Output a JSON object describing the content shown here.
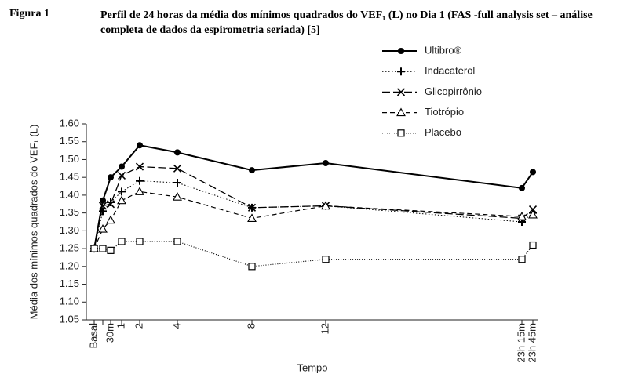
{
  "figure_label": "Figura 1",
  "chart_data": {
    "type": "line",
    "title": "Perfil de 24 horas da média dos mínimos quadrados do VEF₁ (L) no Dia 1 (FAS -full analysis set – análise completa de dados da espirometria seriada) [5]",
    "x_label": "Tempo",
    "y_label": "Média dos mínimos quadrados do VEF₁ (L)",
    "categories": [
      "Basal",
      null,
      "30m",
      "1",
      "2",
      "4",
      "8",
      "12",
      "23h 15m",
      "23h 45m"
    ],
    "ylim": [
      1.05,
      1.6
    ],
    "yticks": [
      {
        "value": 1.05,
        "label": "1.05"
      },
      {
        "value": 1.1,
        "label": "1.10"
      },
      {
        "value": 1.15,
        "label": "1.15"
      },
      {
        "value": 1.2,
        "label": "1.20"
      },
      {
        "value": 1.25,
        "label": "1.25"
      },
      {
        "value": 1.3,
        "label": "1.30"
      },
      {
        "value": 1.35,
        "label": "1.35"
      },
      {
        "value": 1.4,
        "label": "1.40"
      },
      {
        "value": 1.45,
        "label": "1.45"
      },
      {
        "value": 1.5,
        "label": "1.50"
      },
      {
        "value": 1.55,
        "label": "1.55"
      },
      {
        "value": 1.6,
        "label": "1.60"
      }
    ],
    "legend": "top-right",
    "series": [
      {
        "name": "Ultibro®",
        "color": "#000000",
        "style": "solid",
        "marker": "filled-circle",
        "values": [
          1.25,
          1.385,
          1.45,
          1.48,
          1.54,
          1.52,
          1.47,
          1.49,
          1.42,
          1.465
        ]
      },
      {
        "name": "Indacaterol",
        "color": "#000000",
        "style": "dotted",
        "marker": "plus",
        "values": [
          1.25,
          1.355,
          1.38,
          1.41,
          1.44,
          1.435,
          1.365,
          1.37,
          1.325,
          1.35
        ]
      },
      {
        "name": "Glicopirrônio",
        "color": "#000000",
        "style": "long-dash",
        "marker": "cross",
        "values": [
          1.25,
          1.37,
          1.375,
          1.455,
          1.48,
          1.475,
          1.365,
          1.37,
          1.335,
          1.36
        ]
      },
      {
        "name": "Tiotrópio",
        "color": "#000000",
        "style": "dashed",
        "marker": "triangle",
        "values": [
          1.25,
          1.305,
          1.33,
          1.385,
          1.41,
          1.395,
          1.335,
          1.37,
          1.34,
          1.345
        ]
      },
      {
        "name": "Placebo",
        "color": "#000000",
        "style": "fine-dotted",
        "marker": "open-square",
        "values": [
          1.25,
          1.25,
          1.245,
          1.27,
          1.27,
          1.27,
          1.2,
          1.22,
          1.22,
          1.26
        ]
      }
    ]
  }
}
